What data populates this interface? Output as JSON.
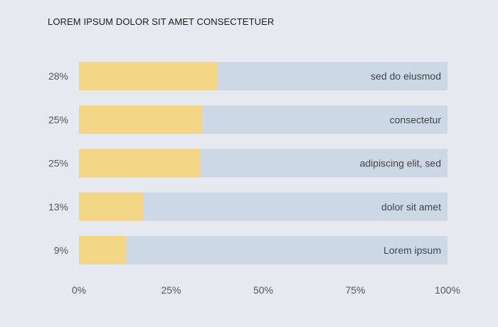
{
  "chart_data": {
    "type": "bar",
    "orientation": "horizontal",
    "stacked_percent": true,
    "title": "LOREM IPSUM DOLOR SIT AMET CONSECTETUER",
    "categories": [
      "sed do eiusmod",
      "consectetur",
      "adipiscing elit, sed",
      "dolor sit amet",
      "Lorem ipsum"
    ],
    "value_labels": [
      "28%",
      "25%",
      "25%",
      "13%",
      "9%"
    ],
    "series": [
      {
        "values": [
          37.5,
          33.5,
          33.0,
          17.5,
          12.7
        ],
        "color": "#f2d685"
      },
      {
        "values": [
          62.5,
          66.5,
          67.0,
          82.5,
          87.3
        ],
        "color": "#cdd8e7"
      }
    ],
    "x_ticks": [
      "0%",
      "25%",
      "50%",
      "75%",
      "100%"
    ],
    "xlim": [
      0,
      100
    ],
    "grid": false,
    "legend": "none"
  },
  "colors": {
    "background": "#e6eaf0",
    "highlight": "#f2d685",
    "track": "#cdd8e7"
  }
}
